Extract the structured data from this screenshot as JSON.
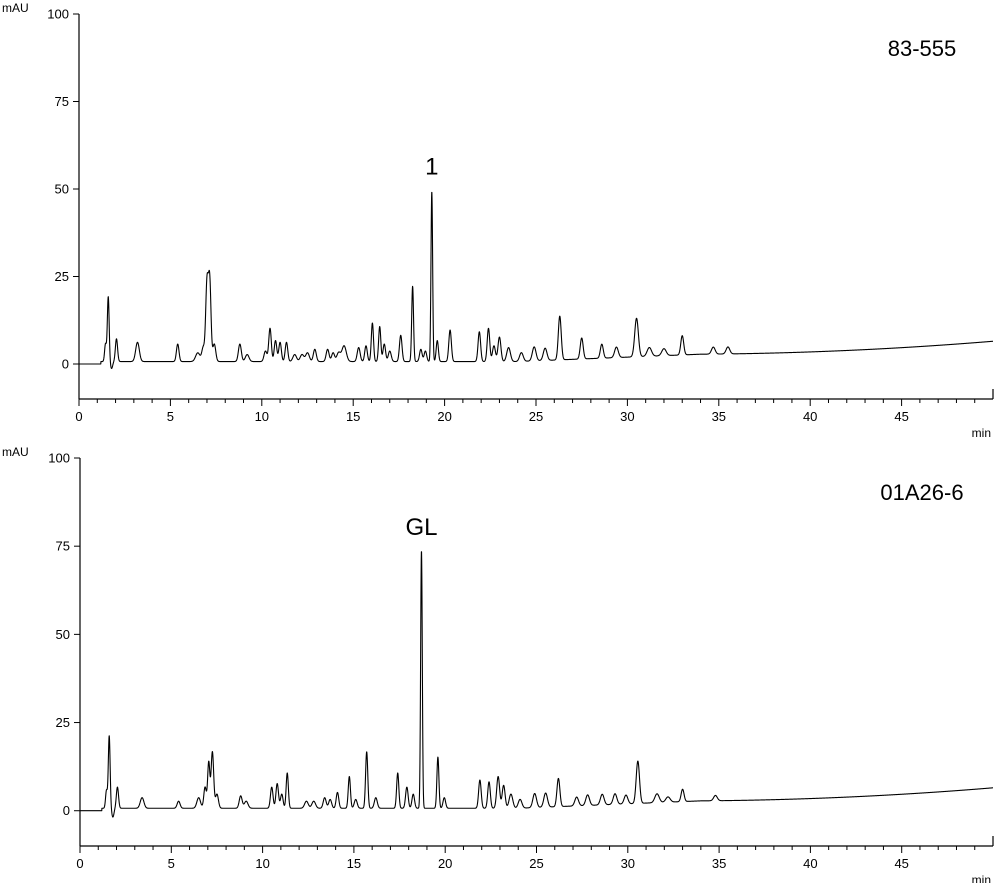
{
  "chart_data": [
    {
      "type": "line",
      "ylabel": "mAU",
      "xlabel": "min",
      "xlim": [
        0,
        50
      ],
      "ylim": [
        -10,
        100
      ],
      "xticks": [
        0,
        5,
        10,
        15,
        20,
        25,
        30,
        35,
        40,
        45
      ],
      "xtick_labels": [
        "0",
        "5",
        "10",
        "15",
        "20",
        "25",
        "30",
        "35",
        "40",
        "45"
      ],
      "yticks": [
        0,
        25,
        50,
        75,
        100
      ],
      "ytick_labels": [
        "0",
        "25",
        "50",
        "75",
        "100"
      ],
      "sample_label": "83-555",
      "annotations": [
        {
          "text": "1",
          "x": 19.3,
          "y": 49
        }
      ],
      "baseline_drift": {
        "start_x": 34,
        "end_y": 6.5
      },
      "peaks": [
        [
          1.45,
          5,
          0.05
        ],
        [
          1.6,
          18.5,
          0.05
        ],
        [
          1.78,
          -2,
          0.06
        ],
        [
          2.05,
          6.5,
          0.06
        ],
        [
          3.2,
          5.5,
          0.1
        ],
        [
          5.4,
          5,
          0.07
        ],
        [
          6.5,
          2.5,
          0.12
        ],
        [
          6.8,
          4,
          0.08
        ],
        [
          7.0,
          22,
          0.07
        ],
        [
          7.15,
          23,
          0.07
        ],
        [
          7.4,
          5,
          0.08
        ],
        [
          8.8,
          5,
          0.08
        ],
        [
          9.2,
          2,
          0.1
        ],
        [
          10.2,
          3,
          0.08
        ],
        [
          10.45,
          9.5,
          0.07
        ],
        [
          10.75,
          6,
          0.07
        ],
        [
          11.0,
          5.5,
          0.07
        ],
        [
          11.35,
          5.5,
          0.07
        ],
        [
          11.8,
          2,
          0.1
        ],
        [
          12.2,
          2,
          0.1
        ],
        [
          12.5,
          2.5,
          0.1
        ],
        [
          12.9,
          3.5,
          0.08
        ],
        [
          13.6,
          3.5,
          0.08
        ],
        [
          13.9,
          2.5,
          0.08
        ],
        [
          14.2,
          2.5,
          0.1
        ],
        [
          14.5,
          4.5,
          0.12
        ],
        [
          15.3,
          4,
          0.08
        ],
        [
          15.7,
          4.5,
          0.07
        ],
        [
          16.05,
          11,
          0.06
        ],
        [
          16.45,
          10,
          0.06
        ],
        [
          16.7,
          5,
          0.07
        ],
        [
          17.0,
          3,
          0.08
        ],
        [
          17.6,
          7.5,
          0.07
        ],
        [
          18.25,
          21.5,
          0.05
        ],
        [
          18.7,
          3.5,
          0.07
        ],
        [
          18.95,
          3,
          0.07
        ],
        [
          19.3,
          48.5,
          0.045
        ],
        [
          19.6,
          6,
          0.06
        ],
        [
          20.3,
          9,
          0.07
        ],
        [
          21.9,
          8.5,
          0.07
        ],
        [
          22.4,
          9.5,
          0.07
        ],
        [
          22.7,
          4.5,
          0.08
        ],
        [
          23.0,
          7,
          0.08
        ],
        [
          23.5,
          4,
          0.1
        ],
        [
          24.2,
          2.5,
          0.1
        ],
        [
          24.9,
          4,
          0.1
        ],
        [
          25.5,
          3.5,
          0.1
        ],
        [
          26.3,
          12.5,
          0.08
        ],
        [
          27.5,
          6,
          0.08
        ],
        [
          28.6,
          4,
          0.08
        ],
        [
          29.4,
          3,
          0.1
        ],
        [
          30.5,
          11,
          0.1
        ],
        [
          31.2,
          2.5,
          0.12
        ],
        [
          32.0,
          2,
          0.12
        ],
        [
          33.0,
          5.5,
          0.08
        ],
        [
          34.7,
          2,
          0.1
        ],
        [
          35.5,
          2,
          0.1
        ]
      ]
    },
    {
      "type": "line",
      "ylabel": "mAU",
      "xlabel": "min",
      "xlim": [
        0,
        50
      ],
      "ylim": [
        -10,
        100
      ],
      "xticks": [
        0,
        5,
        10,
        15,
        20,
        25,
        30,
        35,
        40,
        45
      ],
      "xtick_labels": [
        "0",
        "5",
        "10",
        "15",
        "20",
        "25",
        "30",
        "35",
        "40",
        "45"
      ],
      "yticks": [
        0,
        25,
        50,
        75,
        100
      ],
      "ytick_labels": [
        "0",
        "25",
        "50",
        "75",
        "100"
      ],
      "sample_label": "01A26-6",
      "annotations": [
        {
          "text": "GL",
          "x": 18.7,
          "y": 73
        }
      ],
      "baseline_drift": {
        "start_x": 34,
        "end_y": 6.5
      },
      "peaks": [
        [
          1.45,
          5,
          0.05
        ],
        [
          1.6,
          20.5,
          0.05
        ],
        [
          1.8,
          -2.5,
          0.06
        ],
        [
          2.05,
          6,
          0.06
        ],
        [
          3.4,
          3,
          0.1
        ],
        [
          5.4,
          2,
          0.08
        ],
        [
          6.5,
          3,
          0.1
        ],
        [
          6.85,
          6,
          0.07
        ],
        [
          7.05,
          13,
          0.06
        ],
        [
          7.25,
          16,
          0.07
        ],
        [
          7.5,
          4,
          0.08
        ],
        [
          8.8,
          3.5,
          0.08
        ],
        [
          9.1,
          2,
          0.1
        ],
        [
          10.5,
          6,
          0.07
        ],
        [
          10.8,
          7,
          0.07
        ],
        [
          11.05,
          4,
          0.07
        ],
        [
          11.35,
          10,
          0.06
        ],
        [
          12.4,
          2,
          0.1
        ],
        [
          12.8,
          2,
          0.1
        ],
        [
          13.4,
          3,
          0.08
        ],
        [
          13.7,
          2.5,
          0.08
        ],
        [
          14.1,
          4.5,
          0.07
        ],
        [
          14.75,
          9,
          0.06
        ],
        [
          15.1,
          2.5,
          0.08
        ],
        [
          15.7,
          16,
          0.06
        ],
        [
          16.2,
          3,
          0.08
        ],
        [
          17.4,
          10,
          0.06
        ],
        [
          17.9,
          6,
          0.07
        ],
        [
          18.25,
          4,
          0.07
        ],
        [
          18.7,
          73,
          0.045
        ],
        [
          19.6,
          14.5,
          0.055
        ],
        [
          19.95,
          3,
          0.07
        ],
        [
          21.9,
          8,
          0.07
        ],
        [
          22.4,
          7.5,
          0.07
        ],
        [
          22.9,
          9,
          0.08
        ],
        [
          23.2,
          6.5,
          0.08
        ],
        [
          23.6,
          4,
          0.1
        ],
        [
          24.1,
          2.5,
          0.1
        ],
        [
          24.9,
          4,
          0.1
        ],
        [
          25.5,
          4,
          0.1
        ],
        [
          26.2,
          8,
          0.08
        ],
        [
          27.2,
          2.5,
          0.1
        ],
        [
          27.8,
          3,
          0.1
        ],
        [
          28.6,
          3,
          0.1
        ],
        [
          29.3,
          3,
          0.1
        ],
        [
          29.9,
          2.5,
          0.1
        ],
        [
          30.55,
          12,
          0.09
        ],
        [
          31.6,
          2.5,
          0.12
        ],
        [
          32.2,
          1.5,
          0.12
        ],
        [
          33.0,
          3.5,
          0.08
        ],
        [
          34.8,
          1.5,
          0.1
        ]
      ]
    }
  ]
}
